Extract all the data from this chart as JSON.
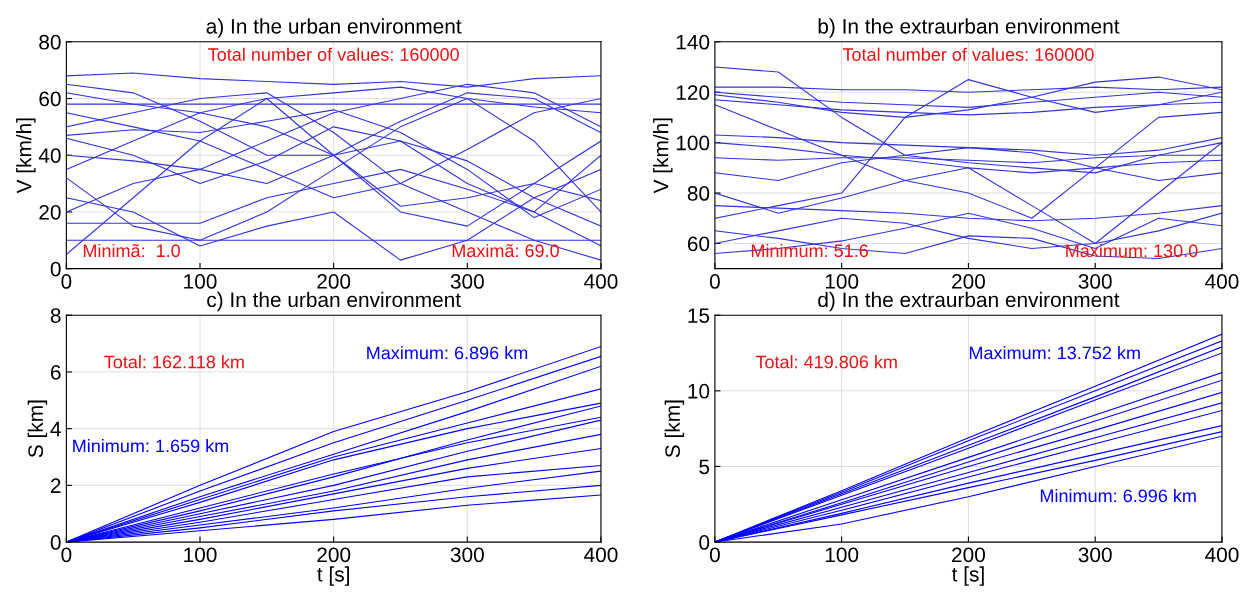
{
  "chart_data": [
    {
      "type": "line",
      "title": "a) In the urban environment",
      "ylabel": "V [km/h]",
      "xlim": [
        0,
        400
      ],
      "xticks": [
        0,
        100,
        200,
        300,
        400
      ],
      "ylim": [
        0,
        80
      ],
      "yticks": [
        0,
        20,
        40,
        60,
        80
      ],
      "grid": true,
      "annotations": [
        "Total number of values: 160000",
        "Minimã:  1.0",
        "Maximã: 69.0"
      ],
      "x": [
        0,
        50,
        100,
        150,
        200,
        250,
        300,
        350,
        400
      ],
      "series": [
        {
          "color": "#3333dd",
          "values": [
            68,
            69,
            67,
            66,
            65,
            66,
            64,
            67,
            68
          ]
        },
        {
          "color": "#3333dd",
          "values": [
            62,
            58,
            55,
            60,
            62,
            64,
            60,
            57,
            55
          ]
        },
        {
          "color": "#3333dd",
          "values": [
            46,
            40,
            30,
            38,
            50,
            45,
            30,
            20,
            40
          ]
        },
        {
          "color": "#3333dd",
          "values": [
            5,
            25,
            45,
            60,
            40,
            20,
            15,
            30,
            45
          ]
        },
        {
          "color": "#3333dd",
          "values": [
            32,
            15,
            10,
            20,
            35,
            50,
            60,
            45,
            20
          ]
        },
        {
          "color": "#3333dd",
          "values": [
            55,
            50,
            45,
            35,
            25,
            30,
            42,
            55,
            60
          ]
        },
        {
          "color": "#3333dd",
          "values": [
            20,
            30,
            35,
            30,
            40,
            45,
            38,
            25,
            15
          ]
        },
        {
          "color": "#3333dd",
          "values": [
            10,
            10,
            10,
            10,
            10,
            10,
            10,
            10,
            10
          ]
        },
        {
          "color": "#3333dd",
          "values": [
            16,
            16,
            16,
            25,
            30,
            35,
            28,
            20,
            8
          ]
        },
        {
          "color": "#3333dd",
          "values": [
            50,
            55,
            60,
            62,
            48,
            30,
            20,
            10,
            3
          ]
        },
        {
          "color": "#3333dd",
          "values": [
            40,
            38,
            35,
            45,
            55,
            60,
            65,
            62,
            50
          ]
        },
        {
          "color": "#3333dd",
          "values": [
            25,
            20,
            8,
            15,
            20,
            3,
            10,
            25,
            35
          ]
        },
        {
          "color": "#3333dd",
          "values": [
            58,
            58,
            58,
            58,
            58,
            58,
            58,
            58,
            58
          ]
        },
        {
          "color": "#3333dd",
          "values": [
            47,
            49,
            48,
            52,
            56,
            48,
            35,
            18,
            28
          ]
        },
        {
          "color": "#3333dd",
          "values": [
            35,
            45,
            55,
            50,
            40,
            22,
            25,
            30,
            24
          ]
        },
        {
          "color": "#3333dd",
          "values": [
            65,
            62,
            52,
            40,
            40,
            52,
            62,
            60,
            48
          ]
        }
      ]
    },
    {
      "type": "line",
      "title": "b) In the extraurban environment",
      "ylabel": "V [km/h]",
      "xlim": [
        0,
        400
      ],
      "xticks": [
        0,
        100,
        200,
        300,
        400
      ],
      "ylim": [
        50,
        140
      ],
      "yticks": [
        60,
        80,
        100,
        120,
        140
      ],
      "grid": true,
      "annotations": [
        "Total number of values: 160000",
        "Minimum: 51.6",
        "Maximum: 130.0"
      ],
      "x": [
        0,
        50,
        100,
        150,
        200,
        250,
        300,
        350,
        400
      ],
      "series": [
        {
          "color": "#3333dd",
          "values": [
            130,
            128,
            110,
            95,
            92,
            90,
            88,
            95,
            100
          ]
        },
        {
          "color": "#3333dd",
          "values": [
            120,
            118,
            116,
            115,
            114,
            116,
            118,
            120,
            118
          ]
        },
        {
          "color": "#3333dd",
          "values": [
            117,
            115,
            113,
            112,
            111,
            112,
            114,
            115,
            116
          ]
        },
        {
          "color": "#3333dd",
          "values": [
            122,
            122,
            121,
            121,
            120,
            121,
            122,
            121,
            122
          ]
        },
        {
          "color": "#3333dd",
          "values": [
            100,
            98,
            95,
            93,
            90,
            88,
            90,
            92,
            93
          ]
        },
        {
          "color": "#3333dd",
          "values": [
            88,
            85,
            92,
            95,
            98,
            96,
            90,
            85,
            88
          ]
        },
        {
          "color": "#3333dd",
          "values": [
            70,
            75,
            80,
            110,
            125,
            118,
            112,
            115,
            120
          ]
        },
        {
          "color": "#3333dd",
          "values": [
            80,
            72,
            78,
            85,
            90,
            75,
            60,
            80,
            100
          ]
        },
        {
          "color": "#3333dd",
          "values": [
            60,
            65,
            70,
            68,
            62,
            58,
            60,
            65,
            72
          ]
        },
        {
          "color": "#3333dd",
          "values": [
            103,
            102,
            100,
            99,
            98,
            97,
            95,
            97,
            102
          ]
        },
        {
          "color": "#3333dd",
          "values": [
            94,
            93,
            94,
            94,
            93,
            92,
            94,
            95,
            95
          ]
        },
        {
          "color": "#3333dd",
          "values": [
            75,
            74,
            73,
            72,
            70,
            69,
            70,
            72,
            75
          ]
        },
        {
          "color": "#3333dd",
          "values": [
            115,
            105,
            95,
            85,
            80,
            70,
            90,
            110,
            112
          ]
        },
        {
          "color": "#3333dd",
          "values": [
            65,
            62,
            58,
            56,
            63,
            62,
            55,
            54,
            58
          ]
        },
        {
          "color": "#3333dd",
          "values": [
            119,
            116,
            112,
            110,
            113,
            118,
            124,
            126,
            121
          ]
        },
        {
          "color": "#3333dd",
          "values": [
            56,
            58,
            61,
            66,
            72,
            66,
            58,
            70,
            67
          ]
        }
      ]
    },
    {
      "type": "line",
      "title": "c) In the urban environment",
      "xlabel": "t [s]",
      "ylabel": "S [km]",
      "xlim": [
        0,
        400
      ],
      "xticks": [
        0,
        100,
        200,
        300,
        400
      ],
      "ylim": [
        0,
        8
      ],
      "yticks": [
        0,
        2,
        4,
        6,
        8
      ],
      "grid": true,
      "annotations": [
        "Total: 162.118 km",
        "Maximum: 6.896 km",
        "Minimum: 1.659 km"
      ],
      "x": [
        0,
        100,
        200,
        300,
        400
      ],
      "series": [
        {
          "color": "#0000ff",
          "values": [
            0,
            2.0,
            3.9,
            5.3,
            6.896
          ]
        },
        {
          "color": "#0000ff",
          "values": [
            0,
            1.8,
            3.5,
            5.0,
            6.55
          ]
        },
        {
          "color": "#0000ff",
          "values": [
            0,
            1.6,
            3.1,
            4.6,
            6.2
          ]
        },
        {
          "color": "#0000ff",
          "values": [
            0,
            1.5,
            3.0,
            4.2,
            5.4
          ]
        },
        {
          "color": "#0000ff",
          "values": [
            0,
            1.4,
            2.9,
            4.0,
            4.9
          ]
        },
        {
          "color": "#0000ff",
          "values": [
            0,
            1.1,
            2.3,
            3.6,
            4.8
          ]
        },
        {
          "color": "#0000ff",
          "values": [
            0,
            1.2,
            2.4,
            3.5,
            4.4
          ]
        },
        {
          "color": "#0000ff",
          "values": [
            0,
            1.0,
            2.0,
            3.2,
            4.3
          ]
        },
        {
          "color": "#0000ff",
          "values": [
            0,
            0.9,
            1.8,
            2.9,
            3.8
          ]
        },
        {
          "color": "#0000ff",
          "values": [
            0,
            0.8,
            1.7,
            2.6,
            3.3
          ]
        },
        {
          "color": "#0000ff",
          "values": [
            0,
            0.7,
            1.5,
            2.3,
            2.7
          ]
        },
        {
          "color": "#0000ff",
          "values": [
            0,
            0.6,
            1.2,
            1.9,
            2.5
          ]
        },
        {
          "color": "#0000ff",
          "values": [
            0,
            0.5,
            1.1,
            1.6,
            2.0
          ]
        },
        {
          "color": "#0000ff",
          "values": [
            0,
            0.4,
            0.8,
            1.3,
            1.659
          ]
        }
      ]
    },
    {
      "type": "line",
      "title": "d) In the extraurban environment",
      "xlabel": "t [s]",
      "ylabel": "S [km]",
      "xlim": [
        0,
        400
      ],
      "xticks": [
        0,
        100,
        200,
        300,
        400
      ],
      "ylim": [
        0,
        15
      ],
      "yticks": [
        0,
        5,
        10,
        15
      ],
      "grid": true,
      "annotations": [
        "Total: 419.806 km",
        "Maximum: 13.752 km",
        "Minimum: 6.996 km"
      ],
      "x": [
        0,
        100,
        200,
        300,
        400
      ],
      "series": [
        {
          "color": "#0000ff",
          "values": [
            0,
            3.4,
            6.9,
            10.3,
            13.752
          ]
        },
        {
          "color": "#0000ff",
          "values": [
            0,
            3.3,
            6.7,
            10.0,
            13.3
          ]
        },
        {
          "color": "#0000ff",
          "values": [
            0,
            3.2,
            6.4,
            9.6,
            12.9
          ]
        },
        {
          "color": "#0000ff",
          "values": [
            0,
            3.1,
            6.2,
            9.4,
            12.5
          ]
        },
        {
          "color": "#0000ff",
          "values": [
            0,
            2.8,
            5.6,
            8.4,
            11.2
          ]
        },
        {
          "color": "#0000ff",
          "values": [
            0,
            2.6,
            5.3,
            8.0,
            10.7
          ]
        },
        {
          "color": "#0000ff",
          "values": [
            0,
            2.5,
            5.0,
            7.4,
            9.9
          ]
        },
        {
          "color": "#0000ff",
          "values": [
            0,
            2.3,
            4.6,
            6.9,
            9.2
          ]
        },
        {
          "color": "#0000ff",
          "values": [
            0,
            2.1,
            4.3,
            6.5,
            8.7
          ]
        },
        {
          "color": "#0000ff",
          "values": [
            0,
            1.9,
            3.9,
            5.8,
            7.7
          ]
        },
        {
          "color": "#0000ff",
          "values": [
            0,
            1.8,
            3.6,
            5.4,
            7.3
          ]
        },
        {
          "color": "#0000ff",
          "values": [
            0,
            1.2,
            3.0,
            5.0,
            6.996
          ]
        }
      ]
    }
  ]
}
